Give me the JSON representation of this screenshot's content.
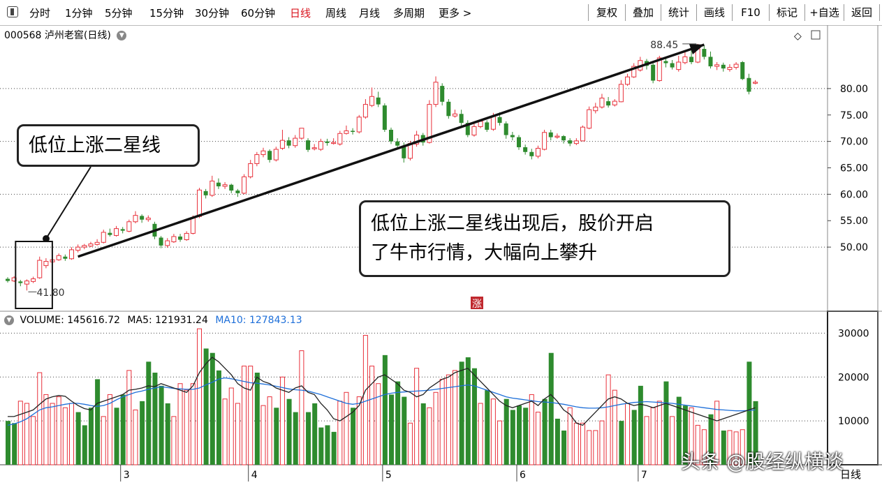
{
  "toolbar": {
    "periods": [
      "分时",
      "1分钟",
      "5分钟",
      "15分钟",
      "30分钟",
      "60分钟",
      "日线",
      "周线",
      "月线",
      "多周期",
      "更多 >"
    ],
    "active_period": "日线",
    "buttons": [
      "复权",
      "叠加",
      "统计",
      "画线",
      "F10",
      "标记",
      "+自选",
      "返回"
    ]
  },
  "header": {
    "code": "000568",
    "name": "泸州老窖(日线)"
  },
  "annotations": {
    "box_label": "低位上涨二星线",
    "main_text_line1": "低位上涨二星线出现后，股价开启",
    "main_text_line2": "了牛市行情，大幅向上攀升",
    "high_label": "88.45",
    "low_label": "41.80",
    "zhang_mark": "涨"
  },
  "volume_header": {
    "volume_label": "VOLUME: 145616.72",
    "ma5_label": "MA5: 121931.24",
    "ma10_label": "MA10: 127843.13"
  },
  "x_axis_label": "日线",
  "watermark": "头条 @股经纵横谈",
  "colors": {
    "up": "#e8303a",
    "down": "#2e8b2e",
    "ma5": "#222222",
    "ma10": "#1e6fd9",
    "accent": "#d9141e"
  },
  "chart_data": [
    {
      "type": "candlestick",
      "ylim": [
        38,
        92
      ],
      "y_ticks": [
        "80.00",
        "75.00",
        "70.00",
        "65.00",
        "60.00",
        "55.00",
        "50.00"
      ],
      "y_tick_values": [
        80,
        75,
        70,
        65,
        60,
        55,
        50
      ],
      "dotted_grid_values": [
        80,
        70,
        60,
        50
      ],
      "x_ticks": [
        "3",
        "4",
        "5",
        "6",
        "7"
      ],
      "x_tick_index": [
        18,
        38,
        59,
        80,
        99
      ],
      "candles": [
        [
          44,
          43.6,
          44.3,
          43.3
        ],
        [
          43.6,
          44.2,
          44.5,
          43.4
        ],
        [
          43.5,
          43.2,
          43.8,
          42.6
        ],
        [
          43,
          43.6,
          43.9,
          41.8
        ],
        [
          43.5,
          44,
          44.4,
          43.2
        ],
        [
          44.2,
          47.5,
          48.2,
          44
        ],
        [
          46.5,
          47.3,
          47.9,
          46
        ],
        [
          47.2,
          47.6,
          47.9,
          47
        ],
        [
          47.6,
          48.4,
          48.8,
          47.4
        ],
        [
          48.2,
          47.8,
          48.6,
          47.4
        ],
        [
          47.8,
          49.5,
          50,
          47.6
        ],
        [
          49.4,
          50,
          50.5,
          49
        ],
        [
          50,
          50.3,
          50.6,
          49.6
        ],
        [
          50.2,
          50.6,
          51,
          50
        ],
        [
          50.5,
          50.9,
          51.5,
          50.3
        ],
        [
          50.9,
          52.8,
          53.3,
          50.7
        ],
        [
          52.7,
          52.3,
          53.5,
          52
        ],
        [
          52.2,
          53.5,
          54,
          52
        ],
        [
          53.4,
          53.1,
          53.8,
          52.6
        ],
        [
          53,
          54.8,
          55.2,
          52.8
        ],
        [
          54.8,
          56,
          56.8,
          54.5
        ],
        [
          55.9,
          55.2,
          56.2,
          54.6
        ],
        [
          55.2,
          55.5,
          56,
          54.8
        ],
        [
          54.4,
          52,
          54.8,
          51.5
        ],
        [
          51.8,
          50.3,
          52.1,
          49.8
        ],
        [
          50.3,
          51.2,
          51.7,
          49.9
        ],
        [
          51,
          52,
          52.5,
          50.8
        ],
        [
          52,
          51.4,
          52.5,
          51
        ],
        [
          51.4,
          52.6,
          53,
          51.2
        ],
        [
          52.6,
          55.5,
          56,
          52.4
        ],
        [
          55.8,
          60.8,
          61.2,
          55.5
        ],
        [
          60.6,
          59.8,
          61,
          59.2
        ],
        [
          59.8,
          62.5,
          63.5,
          59.5
        ],
        [
          62.2,
          61.5,
          63,
          61
        ],
        [
          61.5,
          61.8,
          62.3,
          61
        ],
        [
          61.8,
          60.7,
          62,
          60.2
        ],
        [
          60.7,
          60.2,
          61,
          59.5
        ],
        [
          60.2,
          63.3,
          63.8,
          60
        ],
        [
          63.3,
          65.8,
          66.5,
          63
        ],
        [
          65.8,
          67.5,
          68,
          65.3
        ],
        [
          67.5,
          68.2,
          68.8,
          67
        ],
        [
          68.2,
          66.5,
          68.5,
          66
        ],
        [
          66.5,
          68.5,
          69,
          66.2
        ],
        [
          68.7,
          70.2,
          72.2,
          68.4
        ],
        [
          70.2,
          69.2,
          70.8,
          68.7
        ],
        [
          69.2,
          70.6,
          71.2,
          68.8
        ],
        [
          70.6,
          72.5,
          72.5,
          70.3
        ],
        [
          70.2,
          68.4,
          70.6,
          68
        ],
        [
          68.6,
          68.8,
          69.5,
          68.3
        ],
        [
          68.5,
          70,
          70.5,
          68.2
        ],
        [
          70,
          69.7,
          70.5,
          69.2
        ],
        [
          69.7,
          69.8,
          70.6,
          69.4
        ],
        [
          69.5,
          71.5,
          72,
          69.2
        ],
        [
          71.5,
          72,
          73,
          71.3
        ],
        [
          72,
          71.8,
          72.5,
          71.3
        ],
        [
          71.8,
          74.6,
          75,
          71.5
        ],
        [
          74.6,
          77,
          78,
          74.3
        ],
        [
          76.8,
          78.5,
          80.2,
          76.5
        ],
        [
          78.3,
          77,
          79.4,
          76.5
        ],
        [
          76.8,
          72.2,
          77.2,
          71.8
        ],
        [
          72.2,
          70,
          72.6,
          69.5
        ],
        [
          70,
          69.2,
          70.6,
          68.5
        ],
        [
          69.2,
          66.8,
          69.8,
          66
        ],
        [
          66.8,
          69.6,
          70.1,
          66.4
        ],
        [
          69.5,
          71.2,
          72,
          69
        ],
        [
          71.2,
          69.8,
          71.6,
          69.2
        ],
        [
          69.8,
          77,
          77.8,
          69.6
        ],
        [
          77,
          81.2,
          82.3,
          76.5
        ],
        [
          80.5,
          77.5,
          81,
          76.8
        ],
        [
          77.5,
          74.8,
          78,
          74.3
        ],
        [
          74.8,
          75.2,
          76,
          74.5
        ],
        [
          75.2,
          73.5,
          76,
          73
        ],
        [
          73.5,
          71.2,
          74,
          70.8
        ],
        [
          71.2,
          72.8,
          73.5,
          70.9
        ],
        [
          72.8,
          73.8,
          74.2,
          72.5
        ],
        [
          73.6,
          72.2,
          74,
          71.8
        ],
        [
          72.3,
          74.8,
          75.4,
          72
        ],
        [
          74.6,
          73.5,
          75.5,
          73
        ],
        [
          73.4,
          71.2,
          73.8,
          70.5
        ],
        [
          71.2,
          70.8,
          71.8,
          70.2
        ],
        [
          70.8,
          68.9,
          71.2,
          68.4
        ],
        [
          68.9,
          68,
          69.4,
          67.5
        ],
        [
          68,
          67.2,
          68.6,
          66.6
        ],
        [
          67.2,
          68.7,
          69.2,
          66.8
        ],
        [
          68.5,
          71.7,
          72.2,
          68.3
        ],
        [
          71.7,
          70.8,
          72.2,
          70.2
        ],
        [
          70.8,
          71,
          71.5,
          70.5
        ],
        [
          71,
          70.2,
          71.2,
          69.6
        ],
        [
          70.2,
          69.6,
          70.6,
          69.1
        ],
        [
          69.6,
          70.1,
          70.6,
          69.3
        ],
        [
          70.1,
          72.7,
          73,
          70
        ],
        [
          72.5,
          76,
          76.6,
          72.3
        ],
        [
          75.8,
          76.5,
          77.3,
          75.3
        ],
        [
          76.5,
          78.2,
          79,
          76.2
        ],
        [
          77.6,
          76.8,
          78.4,
          76.4
        ],
        [
          76.9,
          77.6,
          78,
          76.6
        ],
        [
          77.5,
          80.8,
          81.6,
          77.4
        ],
        [
          80.8,
          82.2,
          82.8,
          80.5
        ],
        [
          82.2,
          84.2,
          84.8,
          82
        ],
        [
          83.5,
          85.3,
          86,
          83.2
        ],
        [
          85.2,
          84.3,
          85.6,
          83.6
        ],
        [
          84.5,
          81.5,
          84.8,
          81
        ],
        [
          81.5,
          85.8,
          86.2,
          81.3
        ],
        [
          85.2,
          84.8,
          86,
          84
        ],
        [
          84.8,
          84,
          85.4,
          83.6
        ],
        [
          83.6,
          85,
          86.2,
          83.2
        ],
        [
          84.9,
          86,
          87,
          84.6
        ],
        [
          86,
          85,
          87.2,
          84.6
        ],
        [
          85,
          87.5,
          88.45,
          84.8
        ],
        [
          87.5,
          86,
          88.2,
          85.5
        ],
        [
          86,
          84.2,
          87,
          83.8
        ],
        [
          84.2,
          84.5,
          85,
          83.5
        ],
        [
          84.5,
          83.8,
          84.9,
          83.2
        ],
        [
          83.6,
          84,
          84.6,
          83.2
        ],
        [
          84,
          84.6,
          85,
          83.6
        ],
        [
          85,
          81.8,
          85.2,
          81.6
        ],
        [
          82,
          79.4,
          82.8,
          78.9
        ],
        [
          81,
          81.2,
          81.6,
          80.8
        ]
      ],
      "trend_line": {
        "from": [
          11,
          48.2
        ],
        "to": [
          109,
          88.3
        ]
      },
      "box_span": [
        2,
        6
      ]
    },
    {
      "type": "bar",
      "ylim": [
        0,
        35000
      ],
      "y_ticks": [
        "30000",
        "20000",
        "10000"
      ],
      "y_tick_values": [
        30000,
        20000,
        10000
      ],
      "volumes": [
        10000,
        9500,
        14500,
        14000,
        11000,
        21000,
        16000,
        14000,
        15500,
        13000,
        14000,
        12000,
        9000,
        13000,
        19500,
        11000,
        16000,
        13000,
        16000,
        21500,
        12500,
        14500,
        23500,
        21000,
        18000,
        14000,
        11000,
        18500,
        17000,
        18500,
        31000,
        26500,
        25500,
        21500,
        15000,
        17500,
        14000,
        22500,
        22500,
        21000,
        13500,
        15500,
        13000,
        20000,
        15000,
        12000,
        26000,
        12000,
        14000,
        8500,
        9000,
        7500,
        14500,
        16500,
        13000,
        15500,
        29500,
        22500,
        18500,
        25000,
        16000,
        19000,
        15500,
        9500,
        22000,
        14000,
        13000,
        16500,
        19500,
        20500,
        21500,
        23500,
        24500,
        22000,
        14000,
        17000,
        15000,
        10000,
        15000,
        12500,
        13500,
        13000,
        16000,
        12000,
        15000,
        25500,
        10500,
        7800,
        13000,
        9500,
        9500,
        7800,
        7800,
        10000,
        20500,
        17000,
        10000,
        14000,
        12500,
        18000,
        11000,
        13000,
        14500,
        19000,
        11000,
        15500,
        13500,
        13000,
        9000,
        8000,
        11500,
        14500,
        7800,
        7800,
        7500,
        8000,
        23500,
        14500
      ],
      "colors_up": [
        false,
        false,
        true,
        true,
        true,
        true,
        true,
        true,
        true,
        true,
        true,
        false,
        false,
        false,
        false,
        true,
        true,
        false,
        false,
        true,
        true,
        false,
        false,
        false,
        false,
        false,
        true,
        true,
        true,
        true,
        true,
        false,
        false,
        false,
        true,
        true,
        true,
        true,
        true,
        false,
        true,
        true,
        false,
        true,
        false,
        false,
        true,
        false,
        false,
        false,
        false,
        false,
        true,
        true,
        false,
        true,
        true,
        true,
        true,
        false,
        false,
        false,
        false,
        true,
        true,
        false,
        true,
        true,
        true,
        true,
        true,
        false,
        false,
        false,
        true,
        false,
        true,
        true,
        false,
        false,
        false,
        false,
        true,
        true,
        false,
        false,
        false,
        false,
        true,
        true,
        true,
        true,
        true,
        true,
        true,
        true,
        false,
        true,
        false,
        false,
        true,
        true,
        true,
        false,
        true,
        false,
        false,
        true,
        true,
        true,
        false,
        true,
        false,
        true,
        true,
        true,
        false,
        false
      ],
      "ma5": [
        11000,
        11000,
        11500,
        12000,
        12500,
        13800,
        15000,
        15500,
        15800,
        15600,
        14500,
        13500,
        12800,
        12500,
        14000,
        14500,
        15000,
        15500,
        16000,
        17000,
        17200,
        17500,
        18000,
        17800,
        18500,
        18000,
        17500,
        17000,
        16500,
        18000,
        21000,
        23000,
        24500,
        23500,
        22000,
        20500,
        18500,
        17500,
        17000,
        20000,
        19000,
        18500,
        17500,
        17000,
        16500,
        17500,
        18000,
        16500,
        16000,
        14000,
        12500,
        10500,
        10000,
        11000,
        12000,
        13500,
        17000,
        18500,
        20000,
        20500,
        19500,
        18500,
        17000,
        16500,
        15500,
        16000,
        17500,
        18500,
        19500,
        20000,
        21000,
        21500,
        22000,
        20500,
        19000,
        17500,
        16000,
        14500,
        13500,
        13000,
        13500,
        14000,
        14500,
        13500,
        15000,
        16000,
        14500,
        12500,
        11500,
        9500,
        9000,
        10500,
        12000,
        13500,
        15000,
        15500,
        15000,
        14000,
        13500,
        13800,
        13500,
        13000,
        13500,
        14000,
        13500,
        13000,
        12500,
        12000,
        11500,
        11000,
        10500,
        10000,
        10500,
        11000,
        11500,
        12000,
        12500,
        13000
      ],
      "ma10": [
        9000,
        9300,
        9800,
        10500,
        11500,
        12500,
        13000,
        13200,
        13500,
        13800,
        14000,
        14000,
        13800,
        13500,
        13300,
        13500,
        14000,
        14800,
        15500,
        16000,
        16500,
        16800,
        17200,
        17500,
        17800,
        17600,
        17400,
        17300,
        17200,
        17200,
        17500,
        18200,
        18800,
        19500,
        19800,
        19600,
        19300,
        19000,
        18700,
        18600,
        18400,
        18200,
        17900,
        17600,
        17300,
        17100,
        17000,
        16800,
        16400,
        16000,
        15500,
        15000,
        14500,
        14000,
        13800,
        14000,
        14500,
        15000,
        15500,
        16000,
        16300,
        16500,
        16600,
        16700,
        16800,
        16900,
        17000,
        17200,
        17400,
        17600,
        17800,
        18000,
        18200,
        18000,
        17500,
        17000,
        16500,
        16000,
        15500,
        15200,
        15000,
        14800,
        14600,
        14400,
        14300,
        14200,
        14000,
        13800,
        13500,
        13200,
        13000,
        12900,
        12900,
        13000,
        13200,
        13500,
        13800,
        14000,
        14200,
        14300,
        14400,
        14300,
        14200,
        14100,
        14000,
        13800,
        13600,
        13400,
        13200,
        13000,
        12800,
        12600,
        12500,
        12400,
        12300,
        12300,
        12400,
        12500
      ]
    }
  ]
}
